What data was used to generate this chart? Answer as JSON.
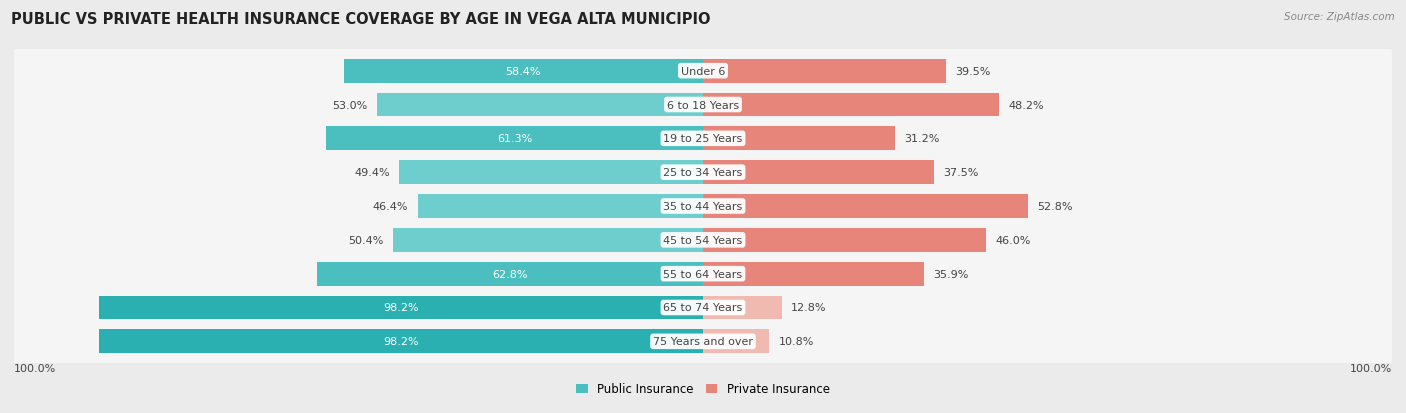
{
  "title": "PUBLIC VS PRIVATE HEALTH INSURANCE COVERAGE BY AGE IN VEGA ALTA MUNICIPIO",
  "source": "Source: ZipAtlas.com",
  "categories": [
    "Under 6",
    "6 to 18 Years",
    "19 to 25 Years",
    "25 to 34 Years",
    "35 to 44 Years",
    "45 to 54 Years",
    "55 to 64 Years",
    "65 to 74 Years",
    "75 Years and over"
  ],
  "public_values": [
    58.4,
    53.0,
    61.3,
    49.4,
    46.4,
    50.4,
    62.8,
    98.2,
    98.2
  ],
  "private_values": [
    39.5,
    48.2,
    31.2,
    37.5,
    52.8,
    46.0,
    35.9,
    12.8,
    10.8
  ],
  "public_color_normal": "#6ecece",
  "public_color_mid": "#4bbfbf",
  "public_color_full": "#2ab0b0",
  "private_color_normal": "#e8857a",
  "private_color_light": "#f0bab0",
  "bg_color": "#ebebeb",
  "row_bg_color": "#f5f5f5",
  "label_dark": "#444444",
  "label_white": "#ffffff",
  "title_fontsize": 10.5,
  "label_fontsize": 8.0,
  "cat_fontsize": 8.0,
  "legend_fontsize": 8.5,
  "source_fontsize": 7.5,
  "axis_label_fontsize": 8.0,
  "max_val": 100.0
}
